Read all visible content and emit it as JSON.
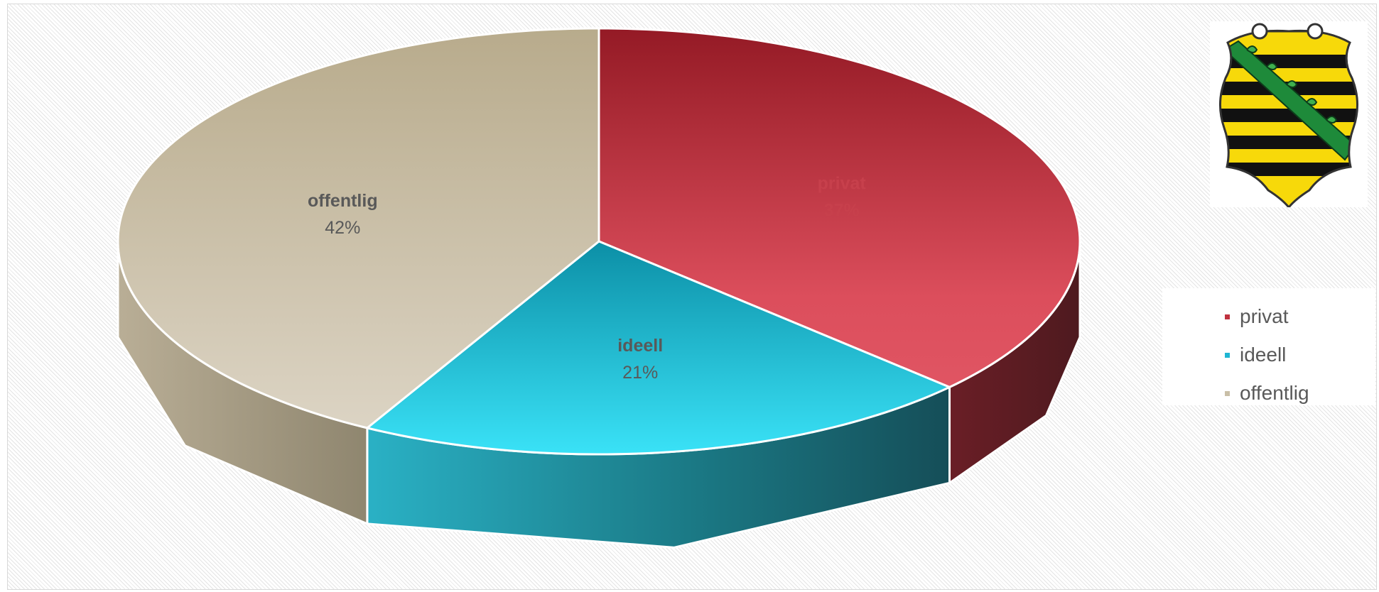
{
  "chart_data": {
    "type": "pie",
    "title": "",
    "style": "3d-exploded-none",
    "legend_position": "right",
    "slices": [
      {
        "label": "privat",
        "value": 37,
        "percent_label": "37%",
        "color": "#d94857"
      },
      {
        "label": "ideell",
        "value": 21,
        "percent_label": "21%",
        "color": "#2ec9e3"
      },
      {
        "label": "offentlig",
        "value": 42,
        "percent_label": "42%",
        "color": "#c8bea4"
      }
    ]
  },
  "legend": {
    "items": [
      {
        "label": "privat",
        "color": "#c0323f"
      },
      {
        "label": "ideell",
        "color": "#1fb6d3"
      },
      {
        "label": "offentlig",
        "color": "#c9bfa7"
      }
    ]
  },
  "emblem": {
    "name": "coat-of-arms-saxony-icon"
  }
}
